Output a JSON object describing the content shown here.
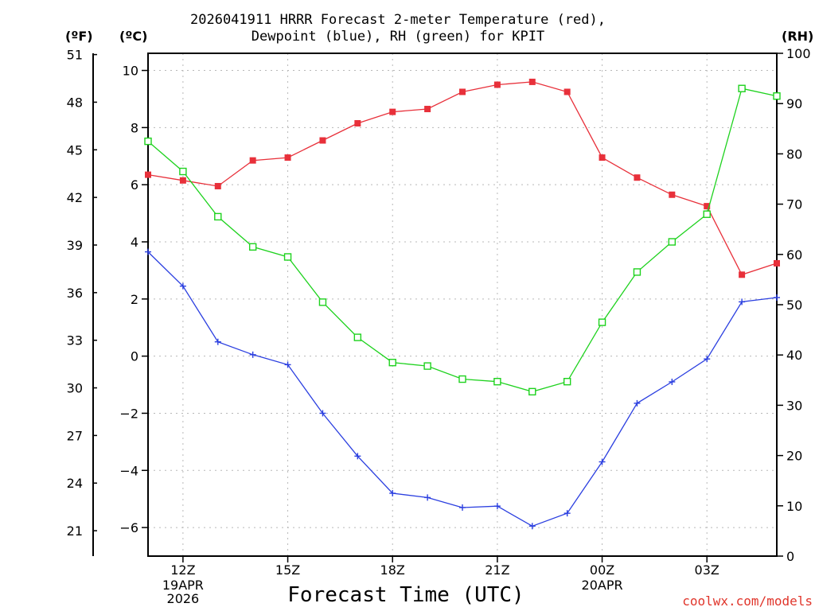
{
  "chart_data": {
    "type": "line",
    "title_line1": "2026041911 HRRR Forecast 2-meter Temperature (red),",
    "title_line2": "Dewpoint (blue), RH (green) for KPIT",
    "xlabel": "Forecast Time (UTC)",
    "units": {
      "fahrenheit": "(ºF)",
      "celsius": "(ºC)",
      "rh": "(RH)"
    },
    "credit": "coolwx.com/models",
    "x_hours": [
      11,
      12,
      13,
      14,
      15,
      16,
      17,
      18,
      19,
      20,
      21,
      22,
      23,
      24,
      25,
      26,
      27,
      28,
      29
    ],
    "xlim_hours": [
      11,
      29
    ],
    "x_ticks": [
      {
        "hour": 12,
        "label": "12Z",
        "sub": [
          "19APR",
          "2026"
        ]
      },
      {
        "hour": 15,
        "label": "15Z",
        "sub": []
      },
      {
        "hour": 18,
        "label": "18Z",
        "sub": []
      },
      {
        "hour": 21,
        "label": "21Z",
        "sub": []
      },
      {
        "hour": 24,
        "label": "00Z",
        "sub": [
          "20APR"
        ]
      },
      {
        "hour": 27,
        "label": "03Z",
        "sub": []
      }
    ],
    "ylim_c": [
      -7,
      10.6
    ],
    "y_ticks_c": [
      "10",
      "8",
      "6",
      "4",
      "2",
      "0",
      "−2",
      "−4",
      "−6"
    ],
    "y_ticks_c_values": [
      10,
      8,
      6,
      4,
      2,
      0,
      -2,
      -4,
      -6
    ],
    "y_ticks_f": [
      "51",
      "48",
      "45",
      "42",
      "39",
      "36",
      "33",
      "30",
      "27",
      "24",
      "21"
    ],
    "y_ticks_f_values": [
      51,
      48,
      45,
      42,
      39,
      36,
      33,
      30,
      27,
      24,
      21
    ],
    "ylim_rh": [
      0,
      100
    ],
    "y_ticks_rh": [
      "100",
      "90",
      "80",
      "70",
      "60",
      "50",
      "40",
      "30",
      "20",
      "10",
      "0"
    ],
    "y_ticks_rh_values": [
      100,
      90,
      80,
      70,
      60,
      50,
      40,
      30,
      20,
      10,
      0
    ],
    "grid": true,
    "series": [
      {
        "name": "Temperature",
        "unit": "C",
        "color": "#e8303a",
        "marker": "filled-square",
        "values": [
          6.35,
          6.15,
          5.95,
          6.85,
          6.95,
          7.55,
          8.15,
          8.55,
          8.65,
          9.25,
          9.5,
          9.6,
          9.25,
          6.95,
          6.25,
          5.65,
          5.25,
          2.85,
          3.25
        ]
      },
      {
        "name": "Dewpoint",
        "unit": "C",
        "color": "#2b3fe0",
        "marker": "plus",
        "values": [
          3.65,
          2.45,
          0.5,
          0.05,
          -0.3,
          -2.0,
          -3.5,
          -4.8,
          -4.95,
          -5.3,
          -5.25,
          -5.95,
          -5.5,
          -3.7,
          -1.65,
          -0.9,
          -0.1,
          1.9,
          2.05
        ]
      },
      {
        "name": "RH",
        "unit": "%",
        "color": "#1ed21e",
        "marker": "open-square",
        "values": [
          82.5,
          76.5,
          67.5,
          61.5,
          59.5,
          50.5,
          43.5,
          38.5,
          37.8,
          35.2,
          34.7,
          32.7,
          34.7,
          46.5,
          56.5,
          62.5,
          68.0,
          93.0,
          91.5
        ]
      }
    ]
  }
}
